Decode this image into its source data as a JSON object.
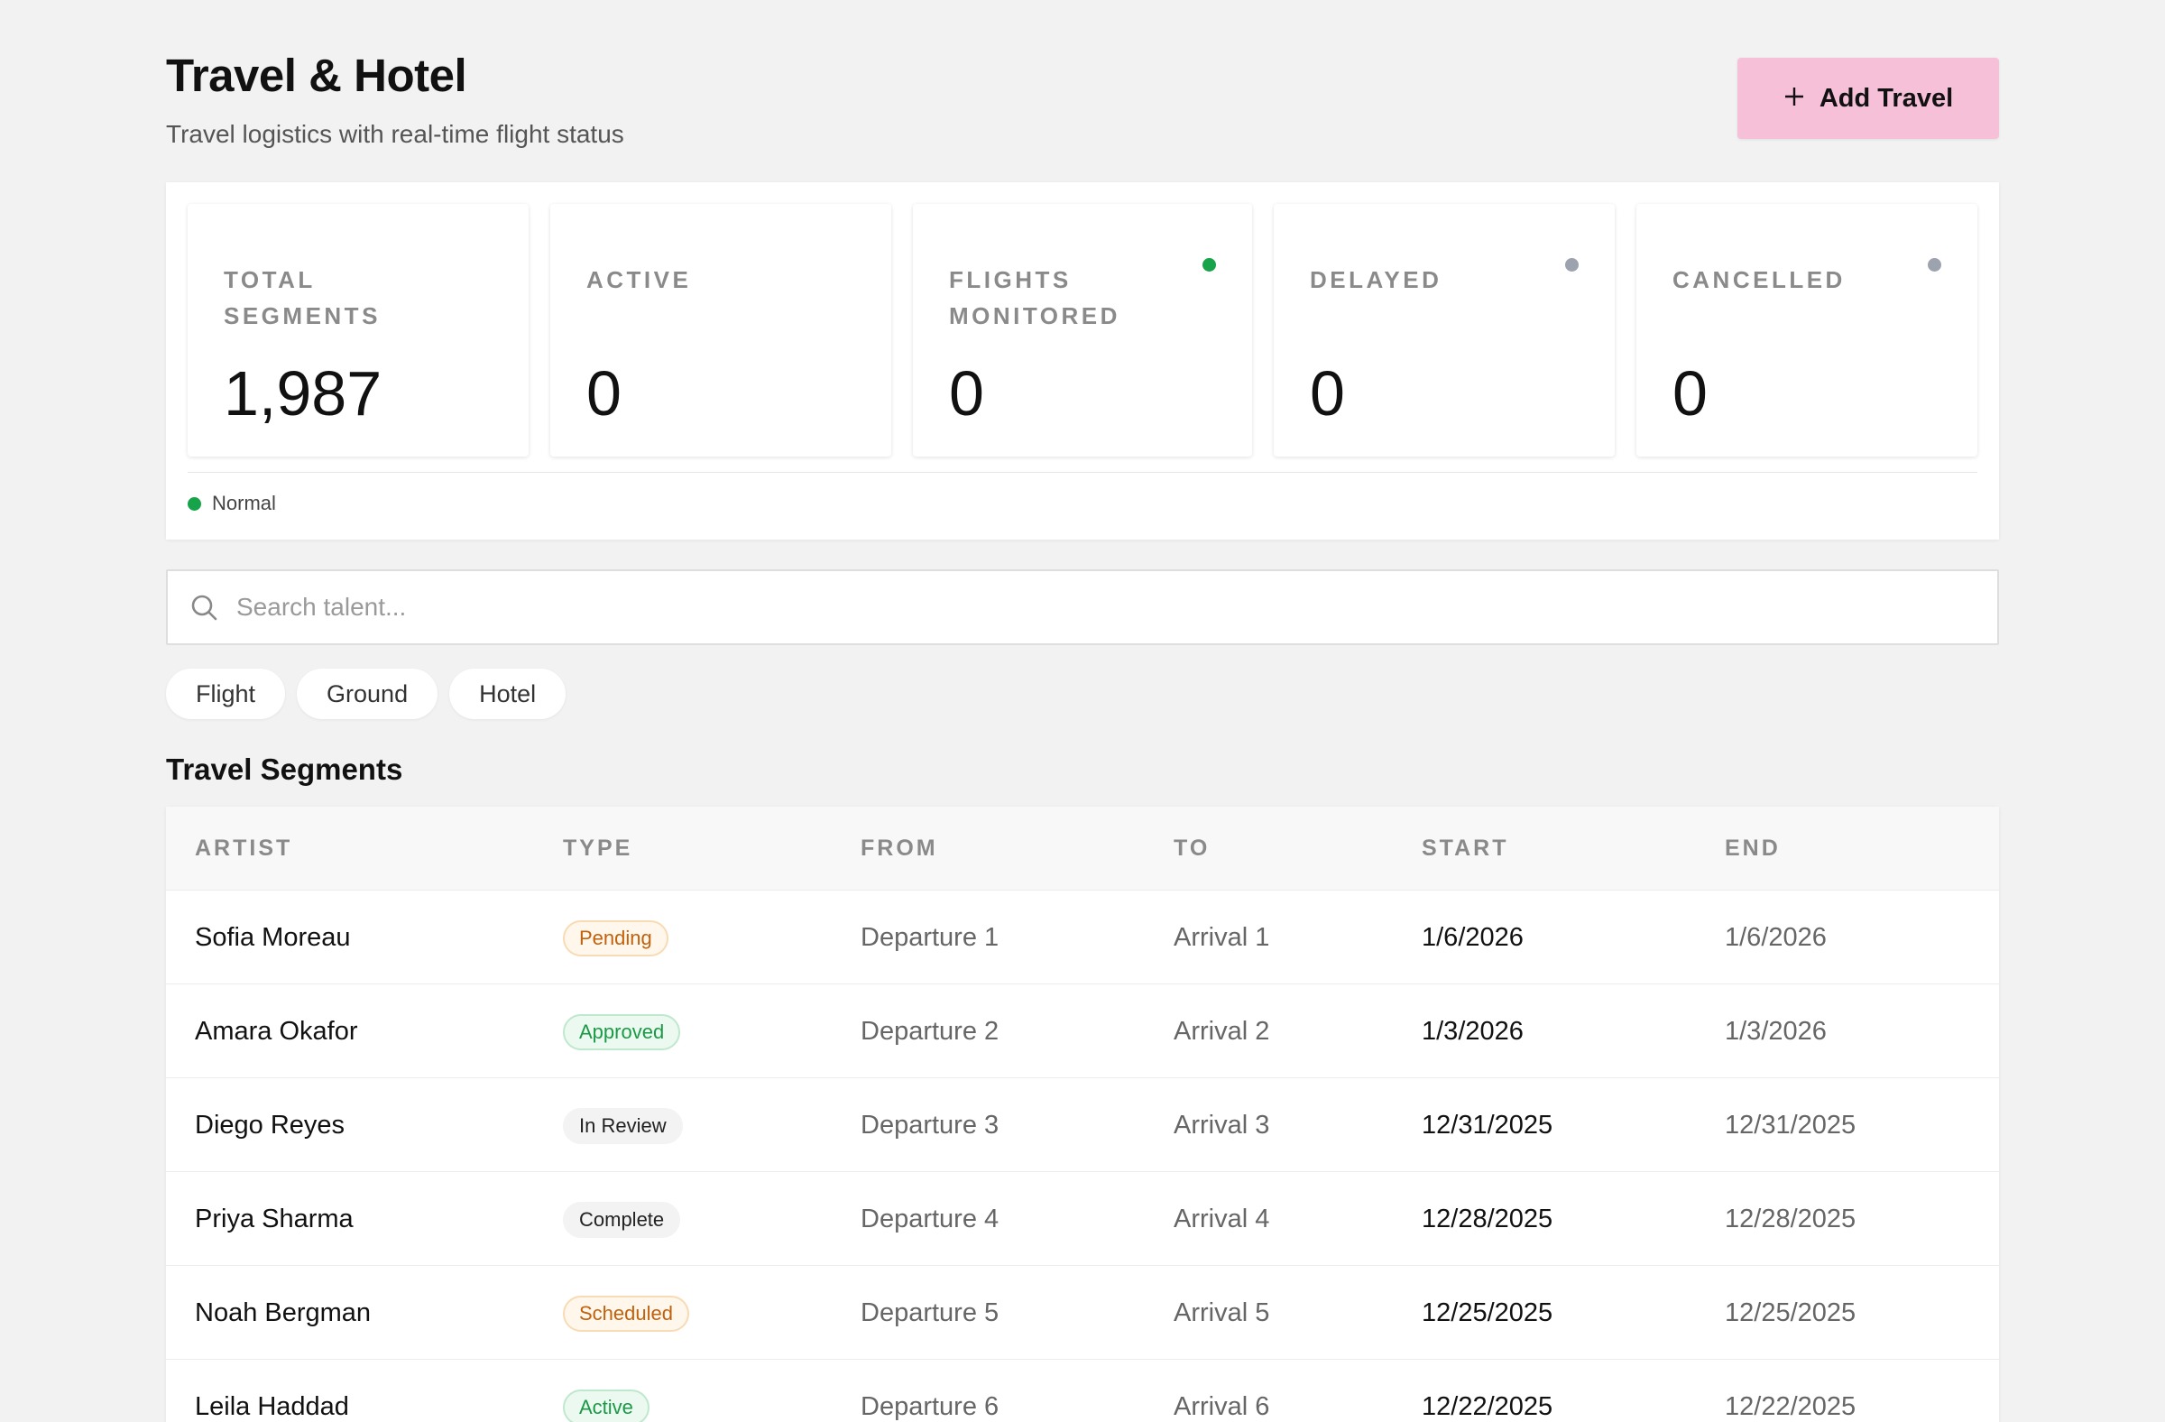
{
  "header": {
    "title": "Travel & Hotel",
    "subtitle": "Travel logistics with real-time flight status",
    "add_button_label": "Add Travel",
    "add_button_icon": "plus-icon"
  },
  "stats": [
    {
      "label": "Total Segments",
      "value": "1,987",
      "dot": null
    },
    {
      "label": "Active",
      "value": "0",
      "dot": null
    },
    {
      "label": "Flights Monitored",
      "value": "0",
      "dot": "#16a34a"
    },
    {
      "label": "Delayed",
      "value": "0",
      "dot": "#9ca3af"
    },
    {
      "label": "Cancelled",
      "value": "0",
      "dot": "#9ca3af"
    }
  ],
  "status": {
    "label": "Normal",
    "color": "#16a34a"
  },
  "search": {
    "placeholder": "Search talent...",
    "value": ""
  },
  "filters": [
    "Flight",
    "Ground",
    "Hotel"
  ],
  "table": {
    "title": "Travel Segments",
    "columns": [
      "Artist",
      "Type",
      "From",
      "To",
      "Start",
      "End"
    ],
    "rows": [
      {
        "artist": "Sofia Moreau",
        "type": "Pending",
        "from": "Departure 1",
        "to": "Arrival 1",
        "start": "1/6/2026",
        "end": "1/6/2026"
      },
      {
        "artist": "Amara Okafor",
        "type": "Approved",
        "from": "Departure 2",
        "to": "Arrival 2",
        "start": "1/3/2026",
        "end": "1/3/2026"
      },
      {
        "artist": "Diego Reyes",
        "type": "In Review",
        "from": "Departure 3",
        "to": "Arrival 3",
        "start": "12/31/2025",
        "end": "12/31/2025"
      },
      {
        "artist": "Priya Sharma",
        "type": "Complete",
        "from": "Departure 4",
        "to": "Arrival 4",
        "start": "12/28/2025",
        "end": "12/28/2025"
      },
      {
        "artist": "Noah Bergman",
        "type": "Scheduled",
        "from": "Departure 5",
        "to": "Arrival 5",
        "start": "12/25/2025",
        "end": "12/25/2025"
      },
      {
        "artist": "Leila Haddad",
        "type": "Active",
        "from": "Departure 6",
        "to": "Arrival 6",
        "start": "12/22/2025",
        "end": "12/22/2025"
      }
    ]
  },
  "colors": {
    "accent": "#f6c1d8",
    "background": "#f2f2f2",
    "success": "#16a34a",
    "muted_dot": "#9ca3af"
  }
}
